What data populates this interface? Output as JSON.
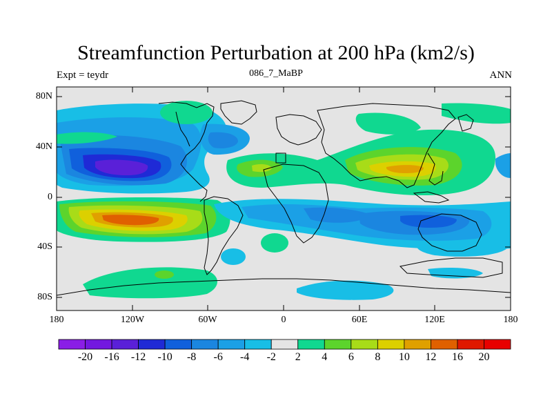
{
  "title": "Streamfunction Perturbation at 200 hPa (km2/s)",
  "left_string": "Expt = teydr",
  "center_string": "086_7_MaBP",
  "right_string": "ANN",
  "axes": {
    "lat_labels": [
      "80N",
      "40N",
      "0",
      "40S",
      "80S"
    ],
    "lon_labels": [
      "180",
      "120W",
      "60W",
      "0",
      "60E",
      "120E",
      "180"
    ]
  },
  "colorbar": {
    "labels": [
      "-20",
      "-16",
      "-12",
      "-10",
      "-8",
      "-6",
      "-4",
      "-2",
      "2",
      "4",
      "6",
      "8",
      "10",
      "12",
      "16",
      "20"
    ],
    "colors": [
      "#8a1ee6",
      "#7318e0",
      "#5a20d8",
      "#1f2ad6",
      "#1060dc",
      "#1b86e0",
      "#1ba0e6",
      "#18bee6",
      "#e4e4e4",
      "#10d890",
      "#5cd42c",
      "#a8dc18",
      "#dcd000",
      "#e0a000",
      "#e06000",
      "#e01800",
      "#e80000"
    ]
  },
  "colors": {
    "background_land": "#e4e4e4",
    "coast": "#000000"
  }
}
